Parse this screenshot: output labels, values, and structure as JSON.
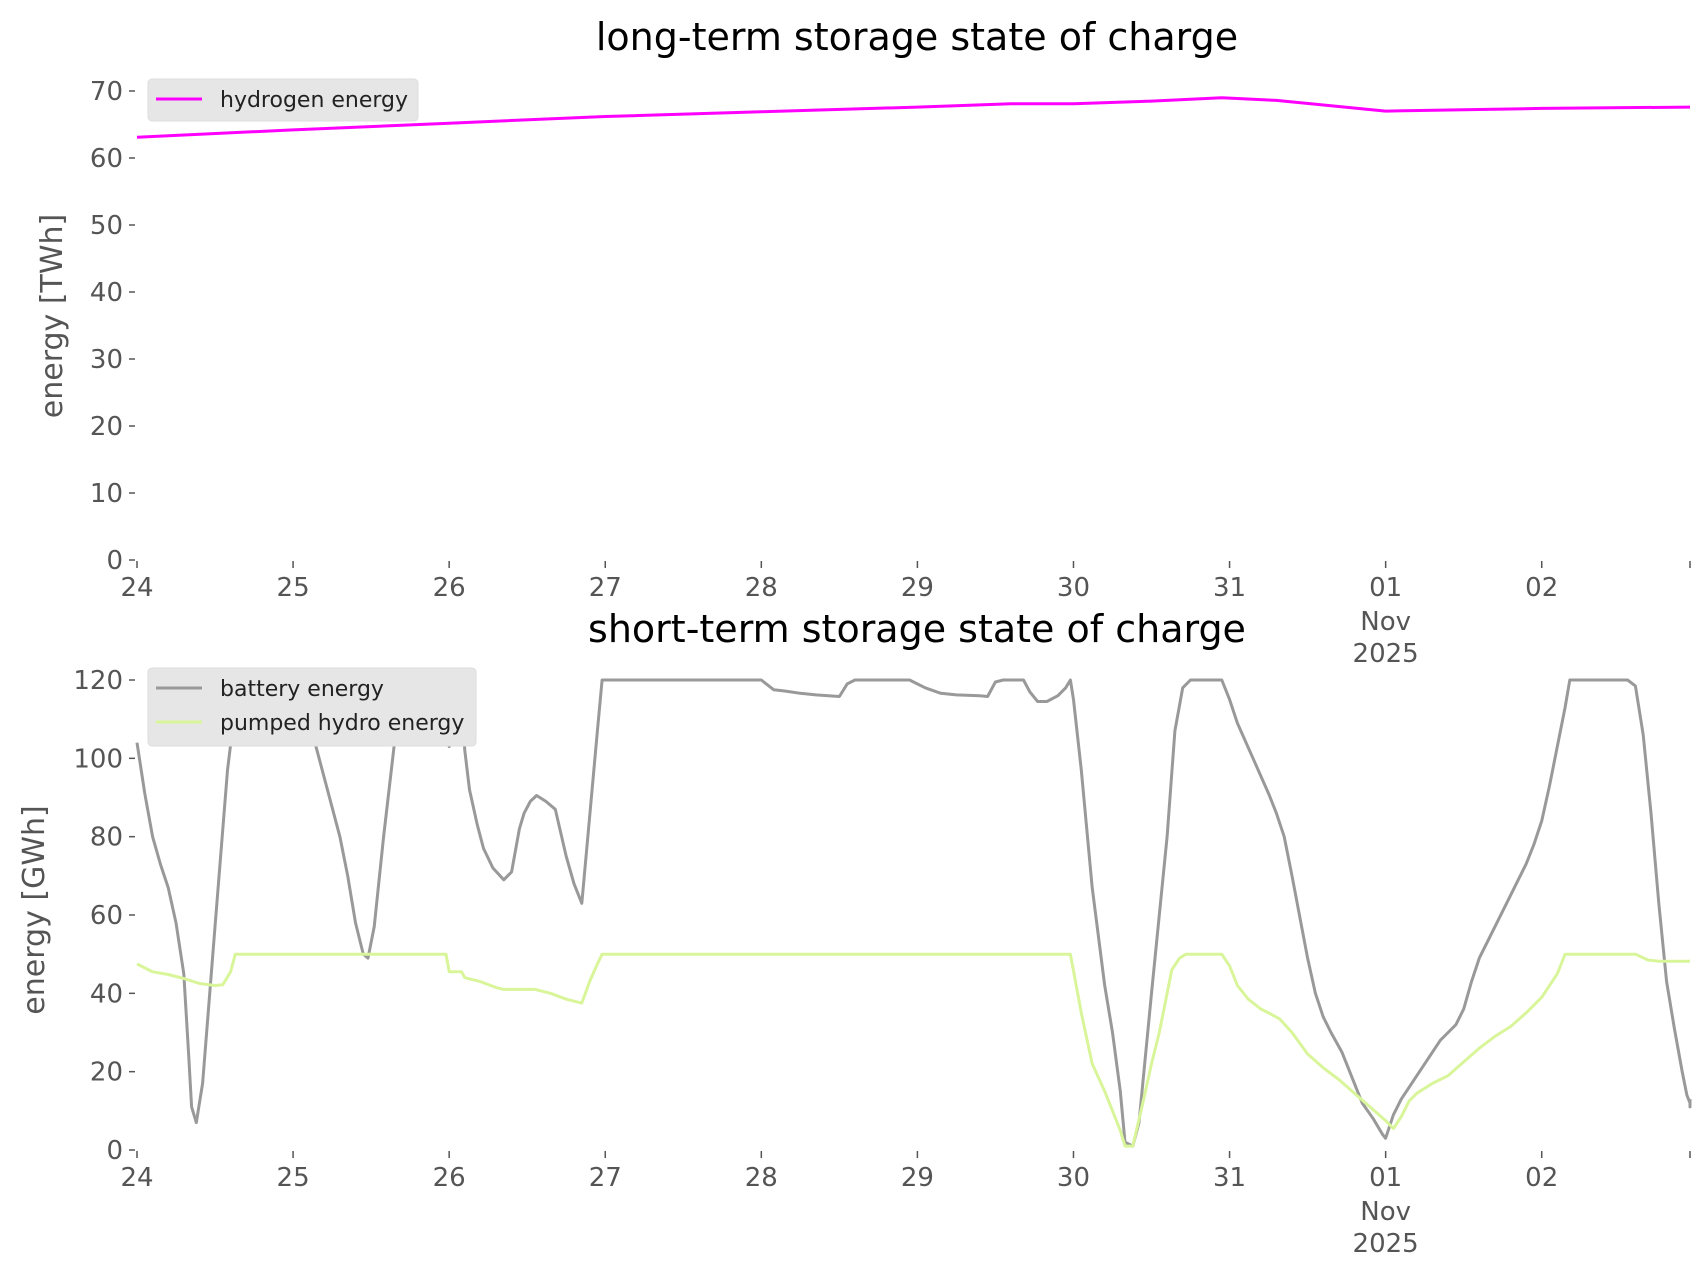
{
  "chart_data": [
    {
      "type": "line",
      "title": "long-term storage state of charge",
      "xlabel": "",
      "ylabel": "energy [TWh]",
      "ylim": [
        0,
        70
      ],
      "yticks": [
        "0",
        "10",
        "20",
        "30",
        "40",
        "50",
        "60",
        "70"
      ],
      "ytick_values": [
        0,
        10,
        20,
        30,
        40,
        50,
        60,
        70
      ],
      "xlim_days": [
        0,
        9.95
      ],
      "xtick_values": [
        0,
        1,
        2,
        3,
        4,
        5,
        6,
        7,
        8,
        9
      ],
      "xticks": [
        "24",
        "25",
        "26",
        "27",
        "28",
        "29",
        "30",
        "31",
        "01",
        "02"
      ],
      "xtick_sub": [
        "",
        "",
        "",
        "",
        "",
        "",
        "",
        "",
        "Nov",
        ""
      ],
      "xtick_sub2": [
        "",
        "",
        "",
        "",
        "",
        "",
        "",
        "",
        "2025",
        ""
      ],
      "x_unit": "days since 24 Oct 2025",
      "legend_location": "top-left",
      "series": [
        {
          "name": "hydrogen energy",
          "color": "#ff00ff",
          "points": [
            [
              0,
              63.1
            ],
            [
              1,
              64.2
            ],
            [
              2,
              65.2
            ],
            [
              3,
              66.2
            ],
            [
              4,
              66.9
            ],
            [
              5,
              67.6
            ],
            [
              5.6,
              68.1
            ],
            [
              6,
              68.1
            ],
            [
              6.5,
              68.5
            ],
            [
              6.95,
              69.0
            ],
            [
              7.3,
              68.6
            ],
            [
              8,
              67.0
            ],
            [
              8.5,
              67.2
            ],
            [
              9,
              67.4
            ],
            [
              9.95,
              67.6
            ]
          ]
        }
      ]
    },
    {
      "type": "line",
      "title": "short-term storage state of charge",
      "xlabel": "",
      "ylabel": "energy [GWh]",
      "ylim": [
        0,
        120
      ],
      "yticks": [
        "0",
        "20",
        "40",
        "60",
        "80",
        "100",
        "120"
      ],
      "ytick_values": [
        0,
        20,
        40,
        60,
        80,
        100,
        120
      ],
      "xlim_days": [
        0,
        9.95
      ],
      "xtick_values": [
        0,
        1,
        2,
        3,
        4,
        5,
        6,
        7,
        8,
        9
      ],
      "xticks": [
        "24",
        "25",
        "26",
        "27",
        "28",
        "29",
        "30",
        "31",
        "01",
        "02"
      ],
      "xtick_sub": [
        "",
        "",
        "",
        "",
        "",
        "",
        "",
        "",
        "Nov",
        ""
      ],
      "xtick_sub2": [
        "",
        "",
        "",
        "",
        "",
        "",
        "",
        "",
        "2025",
        ""
      ],
      "x_unit": "days since 24 Oct 2025",
      "legend_location": "top-left",
      "series": [
        {
          "name": "battery energy",
          "color": "#999999",
          "points": [
            [
              0,
              104
            ],
            [
              0.05,
              91
            ],
            [
              0.1,
              80
            ],
            [
              0.15,
              73
            ],
            [
              0.2,
              67
            ],
            [
              0.25,
              58
            ],
            [
              0.3,
              45
            ],
            [
              0.33,
              25
            ],
            [
              0.35,
              11
            ],
            [
              0.38,
              7
            ],
            [
              0.42,
              17
            ],
            [
              0.5,
              57
            ],
            [
              0.58,
              97
            ],
            [
              0.65,
              120
            ],
            [
              1,
              120
            ],
            [
              1.1,
              110
            ],
            [
              1.2,
              95
            ],
            [
              1.3,
              80
            ],
            [
              1.35,
              70
            ],
            [
              1.4,
              58
            ],
            [
              1.45,
              50
            ],
            [
              1.48,
              49
            ],
            [
              1.52,
              57
            ],
            [
              1.58,
              80
            ],
            [
              1.65,
              104
            ],
            [
              1.72,
              120
            ],
            [
              1.98,
              120
            ],
            [
              2.0,
              103
            ],
            [
              2.05,
              110
            ],
            [
              2.08,
              115
            ],
            [
              2.1,
              102
            ],
            [
              2.13,
              92
            ],
            [
              2.18,
              83
            ],
            [
              2.22,
              77
            ],
            [
              2.28,
              72
            ],
            [
              2.35,
              69
            ],
            [
              2.4,
              71
            ],
            [
              2.45,
              82
            ],
            [
              2.48,
              86
            ],
            [
              2.52,
              89
            ],
            [
              2.56,
              90.5
            ],
            [
              2.62,
              89
            ],
            [
              2.68,
              87
            ],
            [
              2.75,
              75
            ],
            [
              2.8,
              68
            ],
            [
              2.85,
              63
            ],
            [
              2.9,
              85
            ],
            [
              2.95,
              107
            ],
            [
              2.98,
              120
            ],
            [
              4.0,
              120
            ],
            [
              4.08,
              117.5
            ],
            [
              4.15,
              117.2
            ],
            [
              4.25,
              116.6
            ],
            [
              4.35,
              116.2
            ],
            [
              4.5,
              115.8
            ],
            [
              4.55,
              119
            ],
            [
              4.6,
              120
            ],
            [
              4.95,
              120
            ],
            [
              5.05,
              118
            ],
            [
              5.15,
              116.6
            ],
            [
              5.25,
              116.2
            ],
            [
              5.4,
              116
            ],
            [
              5.45,
              115.8
            ],
            [
              5.5,
              119.5
            ],
            [
              5.55,
              120
            ],
            [
              5.68,
              120
            ],
            [
              5.72,
              117
            ],
            [
              5.77,
              114.5
            ],
            [
              5.83,
              114.5
            ],
            [
              5.9,
              116
            ],
            [
              5.95,
              118
            ],
            [
              5.98,
              120
            ],
            [
              6.0,
              115
            ],
            [
              6.05,
              97
            ],
            [
              6.12,
              67
            ],
            [
              6.2,
              42
            ],
            [
              6.25,
              30
            ],
            [
              6.3,
              15
            ],
            [
              6.33,
              2
            ],
            [
              6.38,
              1
            ],
            [
              6.42,
              7
            ],
            [
              6.5,
              40
            ],
            [
              6.6,
              80
            ],
            [
              6.65,
              107
            ],
            [
              6.7,
              118
            ],
            [
              6.75,
              120
            ],
            [
              6.95,
              120
            ],
            [
              7.0,
              115
            ],
            [
              7.05,
              109
            ],
            [
              7.15,
              100
            ],
            [
              7.25,
              91
            ],
            [
              7.3,
              86
            ],
            [
              7.35,
              80
            ],
            [
              7.4,
              70
            ],
            [
              7.5,
              49
            ],
            [
              7.55,
              40
            ],
            [
              7.6,
              34
            ],
            [
              7.65,
              30
            ],
            [
              7.72,
              25
            ],
            [
              7.8,
              17
            ],
            [
              7.85,
              12
            ],
            [
              7.92,
              8
            ],
            [
              7.98,
              4
            ],
            [
              8.0,
              3
            ],
            [
              8.05,
              9
            ],
            [
              8.1,
              13
            ],
            [
              8.2,
              19
            ],
            [
              8.3,
              25
            ],
            [
              8.35,
              28
            ],
            [
              8.4,
              30
            ],
            [
              8.45,
              32
            ],
            [
              8.5,
              36
            ],
            [
              8.55,
              43
            ],
            [
              8.6,
              49
            ],
            [
              8.7,
              57
            ],
            [
              8.8,
              65
            ],
            [
              8.9,
              73
            ],
            [
              8.95,
              78
            ],
            [
              9.0,
              84
            ],
            [
              9.05,
              93
            ],
            [
              9.1,
              103
            ],
            [
              9.15,
              113
            ],
            [
              9.18,
              120
            ],
            [
              9.55,
              120
            ],
            [
              9.6,
              118.5
            ],
            [
              9.65,
              106
            ],
            [
              9.7,
              86
            ],
            [
              9.75,
              63
            ],
            [
              9.8,
              43
            ],
            [
              9.85,
              31
            ],
            [
              9.9,
              20
            ],
            [
              9.93,
              14
            ],
            [
              9.95,
              12
            ],
            [
              9.97,
              11
            ],
            [
              10.0,
              13
            ]
          ]
        },
        {
          "name": "pumped hydro energy",
          "color": "#d9f59a",
          "points": [
            [
              0,
              47.5
            ],
            [
              0.05,
              46.5
            ],
            [
              0.1,
              45.5
            ],
            [
              0.2,
              44.8
            ],
            [
              0.3,
              43.8
            ],
            [
              0.4,
              42.5
            ],
            [
              0.5,
              42
            ],
            [
              0.55,
              42.2
            ],
            [
              0.6,
              45.5
            ],
            [
              0.63,
              50
            ],
            [
              1.98,
              50
            ],
            [
              2.0,
              45.5
            ],
            [
              2.08,
              45.5
            ],
            [
              2.1,
              44
            ],
            [
              2.2,
              43
            ],
            [
              2.3,
              41.5
            ],
            [
              2.35,
              41
            ],
            [
              2.55,
              41
            ],
            [
              2.65,
              40
            ],
            [
              2.75,
              38.5
            ],
            [
              2.85,
              37.5
            ],
            [
              2.9,
              43
            ],
            [
              2.95,
              47.5
            ],
            [
              2.98,
              50
            ],
            [
              5.98,
              50
            ],
            [
              6.05,
              35
            ],
            [
              6.12,
              22
            ],
            [
              6.2,
              15
            ],
            [
              6.25,
              10
            ],
            [
              6.3,
              5
            ],
            [
              6.33,
              1
            ],
            [
              6.38,
              1
            ],
            [
              6.45,
              13
            ],
            [
              6.5,
              22
            ],
            [
              6.55,
              30
            ],
            [
              6.6,
              40
            ],
            [
              6.63,
              46
            ],
            [
              6.68,
              49
            ],
            [
              6.72,
              50
            ],
            [
              6.95,
              50
            ],
            [
              7.0,
              47
            ],
            [
              7.05,
              42
            ],
            [
              7.12,
              38.5
            ],
            [
              7.2,
              36
            ],
            [
              7.25,
              35
            ],
            [
              7.32,
              33.5
            ],
            [
              7.4,
              30
            ],
            [
              7.5,
              24.5
            ],
            [
              7.6,
              21
            ],
            [
              7.7,
              18
            ],
            [
              7.8,
              14.5
            ],
            [
              7.9,
              11
            ],
            [
              8.0,
              7.5
            ],
            [
              8.05,
              5.5
            ],
            [
              8.1,
              8.5
            ],
            [
              8.15,
              12.5
            ],
            [
              8.2,
              14.5
            ],
            [
              8.3,
              17
            ],
            [
              8.4,
              19
            ],
            [
              8.5,
              22.5
            ],
            [
              8.6,
              26
            ],
            [
              8.7,
              29
            ],
            [
              8.8,
              31.5
            ],
            [
              8.9,
              35
            ],
            [
              9.0,
              39
            ],
            [
              9.1,
              45
            ],
            [
              9.15,
              50
            ],
            [
              9.6,
              50
            ],
            [
              9.68,
              48.5
            ],
            [
              9.75,
              48.2
            ],
            [
              10.0,
              48.2
            ]
          ]
        }
      ]
    }
  ]
}
